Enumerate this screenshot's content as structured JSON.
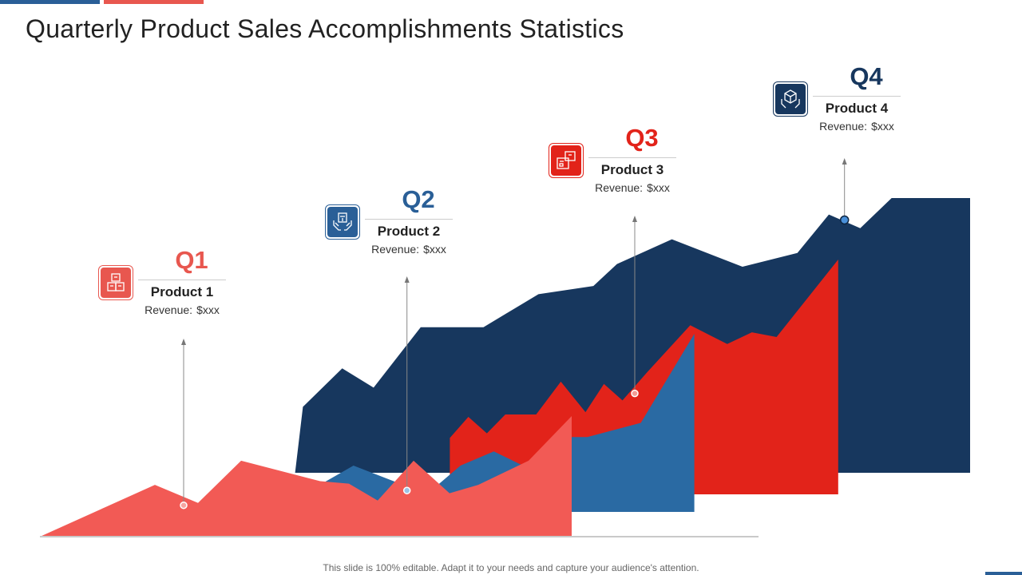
{
  "title": "Quarterly Product Sales Accomplishments Statistics",
  "footer": "This slide is 100% editable. Adapt it to your needs and capture your audience's attention.",
  "colors": {
    "q1": "#e8574f",
    "q2": "#2a5f97",
    "q3": "#e2231a",
    "q4": "#17375e",
    "area_back": "#17375e",
    "area_mid_red": "#e2231a",
    "area_mid_blue": "#2a6aa3",
    "area_front": "#f25a55"
  },
  "quarters": [
    {
      "quarter": "Q1",
      "product": "Product 1",
      "revenue_label": "Revenue:",
      "revenue_value": "$xxx",
      "icon": "boxes-stack-icon"
    },
    {
      "quarter": "Q2",
      "product": "Product 2",
      "revenue_label": "Revenue:",
      "revenue_value": "$xxx",
      "icon": "hands-holding-box-icon"
    },
    {
      "quarter": "Q3",
      "product": "Product 3",
      "revenue_label": "Revenue:",
      "revenue_value": "$xxx",
      "icon": "packages-icon"
    },
    {
      "quarter": "Q4",
      "product": "Product 4",
      "revenue_label": "Revenue:",
      "revenue_value": "$xxx",
      "icon": "hands-holding-package-icon"
    }
  ],
  "chart_data": {
    "type": "area",
    "title": "Quarterly Product Sales Accomplishments Statistics",
    "xlabel": "",
    "ylabel": "",
    "xlim": [
      0,
      100
    ],
    "ylim": [
      0,
      100
    ],
    "grid": false,
    "legend": "none",
    "series": [
      {
        "name": "Q4",
        "x": [
          14,
          15,
          20,
          24,
          30,
          38,
          45,
          52,
          55,
          62,
          71,
          78,
          82,
          86,
          90,
          100
        ],
        "y": [
          0,
          24,
          38,
          31,
          53,
          53,
          65,
          68,
          76,
          85,
          75,
          80,
          94,
          89,
          100,
          100
        ]
      },
      {
        "name": "Q3",
        "x": [
          27,
          30,
          33,
          36,
          41,
          45,
          49,
          52,
          55,
          59,
          66,
          72,
          76,
          80,
          90
        ],
        "y": [
          24,
          33,
          26,
          34,
          34,
          48,
          35,
          47,
          40,
          52,
          72,
          64,
          69,
          67,
          100
        ]
      },
      {
        "name": "Q2",
        "x": [
          16,
          19,
          22,
          29,
          40,
          45,
          50,
          56,
          60,
          64,
          72,
          80
        ],
        "y": [
          19,
          9,
          11,
          26,
          10,
          26,
          34,
          23,
          42,
          42,
          50,
          100
        ]
      },
      {
        "name": "Q1",
        "x": [
          0,
          16,
          22,
          28,
          39,
          43,
          47,
          52,
          57,
          61,
          68,
          74
        ],
        "y": [
          0,
          43,
          28,
          63,
          46,
          44,
          30,
          63,
          36,
          43,
          63,
          100
        ]
      }
    ],
    "markers": [
      {
        "label": "Q1",
        "series": "Q1",
        "x": 20,
        "y": 26
      },
      {
        "label": "Q2",
        "series": "Q2",
        "x": 37,
        "y": 12
      },
      {
        "label": "Q3",
        "series": "Q3",
        "x": 57,
        "y": 43
      },
      {
        "label": "Q4",
        "series": "Q4",
        "x": 84,
        "y": 92
      }
    ]
  }
}
